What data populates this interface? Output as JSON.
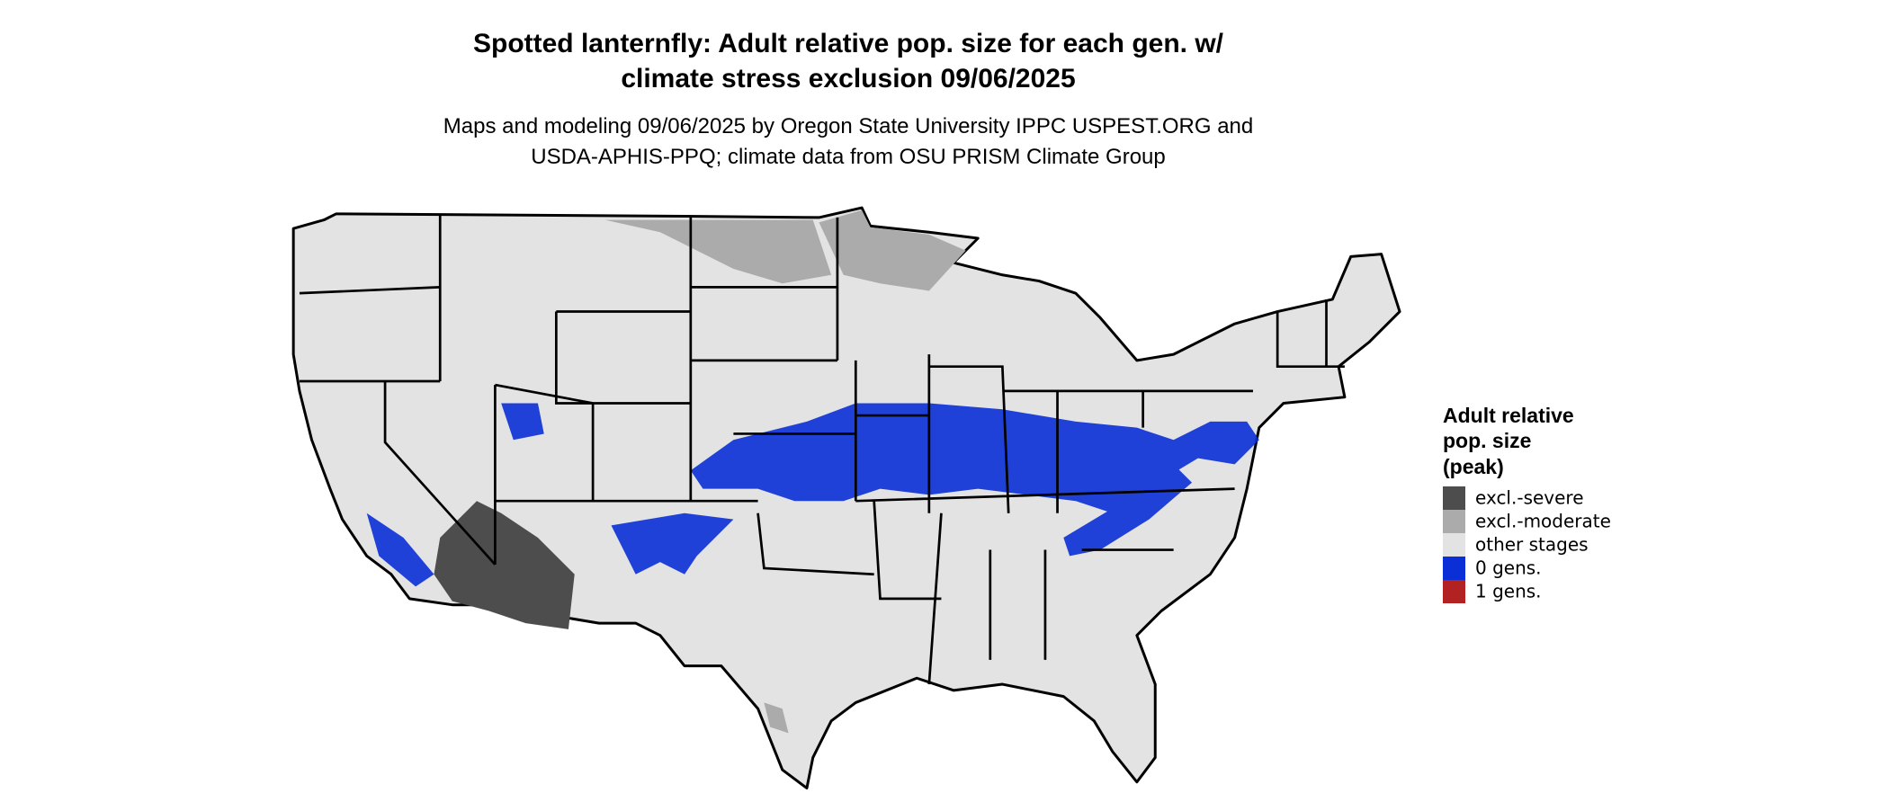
{
  "header": {
    "title": [
      "Spotted lanternfly: Adult relative pop. size for each gen. w/",
      "climate stress exclusion 09/06/2025"
    ],
    "subtitle": [
      "Maps and modeling 09/06/2025 by Oregon State University IPPC USPEST.ORG and",
      "USDA-APHIS-PPQ; climate data from OSU PRISM Climate Group"
    ]
  },
  "legend": {
    "title": [
      "Adult relative",
      "pop. size",
      "(peak)"
    ],
    "items": [
      {
        "label": "excl.-severe",
        "color": "#4d4d4d"
      },
      {
        "label": "excl.-moderate",
        "color": "#ababab"
      },
      {
        "label": "other stages",
        "color": "#e3e3e3"
      },
      {
        "label": "0 gens.",
        "color": "#0a2fd6"
      },
      {
        "label": "1 gens.",
        "color": "#b22222"
      }
    ]
  }
}
